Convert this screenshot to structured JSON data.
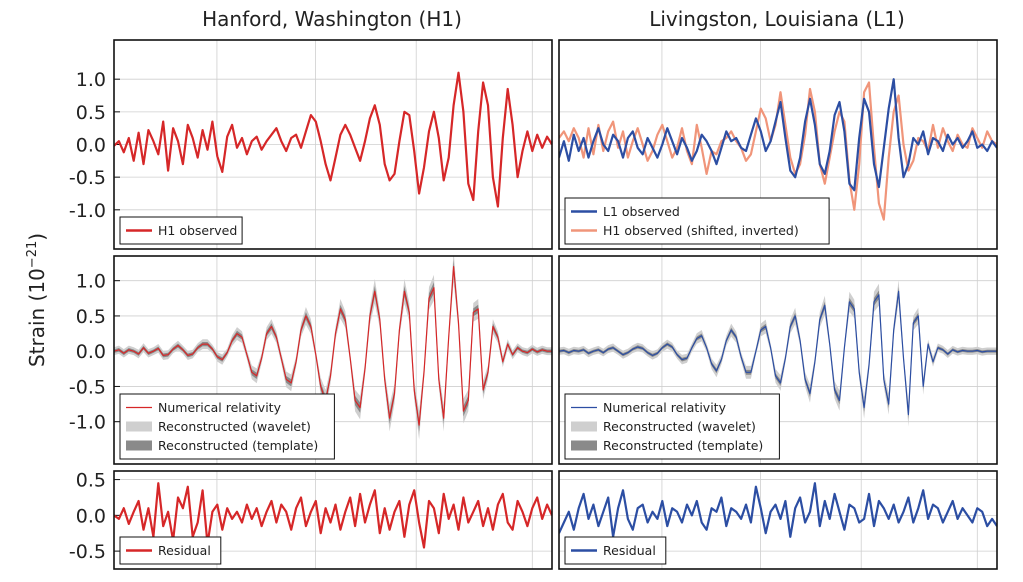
{
  "colors": {
    "h1": "#d62728",
    "l1": "#2c4ea3",
    "h1_shifted": "#f0957a",
    "wavelet_band": "#cfcfcf",
    "template_band": "#8a8a8a"
  },
  "titles": {
    "left": "Hanford, Washington (H1)",
    "right": "Livingston, Louisiana (L1)"
  },
  "ylabel": {
    "main": "Strain (10",
    "exponent": "−21",
    "close": ")"
  },
  "chart_data": [
    {
      "id": "h1-observed",
      "type": "line",
      "detector": "H1",
      "ylim": [
        -1.6,
        1.6
      ],
      "yticks": [
        1.0,
        0.5,
        0.0,
        -0.5,
        -1.0
      ],
      "ytick_labels": [
        "1.0",
        "0.5",
        "0.0",
        "-0.5",
        "-1.0"
      ],
      "grid": true,
      "legend_position": "bottom-left",
      "series": [
        {
          "name": "H1 observed",
          "color": "#d62728",
          "values": [
            -0.02,
            0.05,
            -0.12,
            0.1,
            -0.25,
            0.18,
            -0.3,
            0.22,
            0.05,
            -0.15,
            0.35,
            -0.4,
            0.25,
            0.05,
            -0.3,
            0.3,
            0.1,
            -0.2,
            0.22,
            -0.08,
            0.35,
            -0.18,
            -0.42,
            0.12,
            0.3,
            -0.05,
            0.1,
            -0.15,
            0.05,
            0.12,
            -0.08,
            0.05,
            0.15,
            0.25,
            0.05,
            -0.1,
            0.1,
            0.15,
            -0.05,
            0.2,
            0.45,
            0.35,
            0.05,
            -0.3,
            -0.55,
            -0.2,
            0.15,
            0.3,
            0.15,
            -0.05,
            -0.25,
            0.05,
            0.4,
            0.6,
            0.3,
            -0.3,
            -0.55,
            -0.45,
            0.05,
            0.5,
            0.45,
            -0.1,
            -0.75,
            -0.35,
            0.2,
            0.5,
            0.1,
            -0.55,
            -0.2,
            0.6,
            1.1,
            0.5,
            -0.6,
            -0.85,
            0.2,
            0.95,
            0.6,
            -0.5,
            -0.95,
            0.1,
            0.85,
            0.3,
            -0.5,
            -0.1,
            0.2,
            -0.1,
            0.15,
            -0.05,
            0.12,
            0.0
          ]
        }
      ]
    },
    {
      "id": "l1-observed",
      "type": "line",
      "detector": "L1",
      "ylim": [
        -1.6,
        1.6
      ],
      "grid": true,
      "legend_position": "bottom-left",
      "series": [
        {
          "name": "H1 observed (shifted, inverted)",
          "color": "#f0957a",
          "values": [
            0.1,
            0.2,
            0.05,
            0.25,
            0.1,
            -0.2,
            0.25,
            -0.15,
            0.3,
            -0.1,
            0.2,
            0.35,
            -0.05,
            0.2,
            -0.2,
            0.05,
            0.25,
            0.0,
            -0.25,
            -0.1,
            0.15,
            0.3,
            0.05,
            -0.2,
            -0.05,
            0.25,
            -0.1,
            -0.3,
            0.3,
            -0.05,
            -0.45,
            -0.1,
            -0.15,
            0.05,
            0.1,
            0.2,
            0.05,
            -0.05,
            -0.25,
            -0.15,
            0.2,
            0.55,
            0.4,
            0.05,
            0.3,
            0.8,
            0.3,
            -0.2,
            -0.45,
            -0.3,
            0.15,
            0.85,
            0.5,
            -0.3,
            -0.6,
            -0.2,
            0.2,
            0.5,
            0.35,
            -0.55,
            -1.0,
            -0.3,
            0.8,
            0.95,
            -0.05,
            -0.9,
            -1.15,
            -0.2,
            0.5,
            0.75,
            0.0,
            -0.4,
            -0.25,
            0.1,
            0.05,
            -0.1,
            0.3,
            -0.05,
            0.25,
            0.05,
            -0.1,
            0.15,
            0.0,
            -0.05,
            0.25,
            0.1,
            -0.05,
            0.2,
            0.05,
            0.0
          ]
        },
        {
          "name": "L1 observed",
          "color": "#2c4ea3",
          "values": [
            -0.2,
            0.05,
            -0.25,
            0.15,
            -0.1,
            0.1,
            -0.2,
            0.05,
            0.25,
            0.0,
            -0.1,
            0.15,
            0.05,
            -0.2,
            0.1,
            0.2,
            -0.05,
            -0.15,
            0.1,
            -0.05,
            -0.2,
            0.0,
            0.25,
            0.05,
            -0.15,
            0.1,
            -0.05,
            -0.25,
            -0.1,
            0.15,
            0.05,
            -0.1,
            -0.3,
            -0.05,
            0.2,
            0.05,
            0.1,
            -0.05,
            -0.1,
            0.15,
            0.4,
            0.2,
            -0.1,
            0.05,
            0.35,
            0.65,
            0.1,
            -0.4,
            -0.5,
            -0.2,
            0.35,
            0.7,
            0.3,
            -0.3,
            -0.45,
            -0.1,
            0.45,
            0.65,
            0.2,
            -0.6,
            -0.7,
            0.1,
            0.7,
            0.5,
            -0.3,
            -0.65,
            -0.05,
            0.55,
            1.0,
            0.1,
            -0.5,
            -0.3,
            0.1,
            0.0,
            0.2,
            -0.15,
            0.1,
            0.05,
            -0.1,
            0.15,
            0.0,
            0.1,
            -0.05,
            0.05,
            0.2,
            -0.05,
            0.0,
            -0.1,
            0.05,
            -0.05
          ]
        }
      ]
    },
    {
      "id": "h1-reconstructed",
      "type": "line",
      "detector": "H1",
      "ylim": [
        -1.6,
        1.35
      ],
      "yticks": [
        1.0,
        0.5,
        0.0,
        -0.5,
        -1.0
      ],
      "ytick_labels": [
        "1.0",
        "0.5",
        "0.0",
        "-0.5",
        "-1.0"
      ],
      "grid": true,
      "legend_position": "bottom-left",
      "bands": [
        {
          "name": "Reconstructed (wavelet)",
          "color": "#cfcfcf",
          "half_width": 0.14
        },
        {
          "name": "Reconstructed (template)",
          "color": "#8a8a8a",
          "half_width": 0.06
        }
      ],
      "series": [
        {
          "name": "Numerical relativity",
          "color": "#d62728",
          "values": [
            0.0,
            0.02,
            -0.03,
            0.02,
            0.0,
            -0.04,
            0.05,
            -0.03,
            0.0,
            0.04,
            -0.06,
            -0.05,
            0.03,
            0.08,
            0.02,
            -0.06,
            -0.04,
            0.05,
            0.1,
            0.1,
            0.03,
            -0.08,
            -0.12,
            -0.02,
            0.15,
            0.25,
            0.2,
            -0.05,
            -0.3,
            -0.35,
            -0.1,
            0.25,
            0.35,
            0.2,
            -0.1,
            -0.4,
            -0.45,
            -0.15,
            0.3,
            0.5,
            0.35,
            -0.05,
            -0.5,
            -0.7,
            -0.35,
            0.25,
            0.6,
            0.45,
            -0.1,
            -0.7,
            -0.8,
            -0.25,
            0.5,
            0.85,
            0.45,
            -0.4,
            -0.95,
            -0.6,
            0.3,
            0.85,
            0.55,
            -0.55,
            -1.05,
            -0.3,
            0.75,
            0.9,
            -0.4,
            -0.95,
            0.2,
            1.2,
            0.4,
            -0.85,
            -0.7,
            0.55,
            0.6,
            -0.55,
            -0.3,
            0.35,
            0.2,
            -0.15,
            0.1,
            -0.05,
            0.05,
            0.0,
            -0.02,
            0.03,
            -0.01,
            0.02,
            0.0,
            0.0
          ]
        }
      ]
    },
    {
      "id": "l1-reconstructed",
      "type": "line",
      "detector": "L1",
      "ylim": [
        -1.6,
        1.35
      ],
      "grid": true,
      "legend_position": "bottom-left",
      "bands": [
        {
          "name": "Reconstructed (wavelet)",
          "color": "#cfcfcf",
          "half_width": 0.13
        },
        {
          "name": "Reconstructed (template)",
          "color": "#8a8a8a",
          "half_width": 0.05
        }
      ],
      "series": [
        {
          "name": "Numerical relativity",
          "color": "#2c4ea3",
          "values": [
            0.0,
            0.01,
            -0.02,
            0.01,
            0.0,
            0.02,
            -0.03,
            0.0,
            0.02,
            -0.02,
            0.03,
            0.05,
            0.0,
            -0.05,
            -0.02,
            0.03,
            0.06,
            0.04,
            -0.02,
            -0.06,
            -0.03,
            0.05,
            0.1,
            0.06,
            -0.05,
            -0.12,
            -0.1,
            0.05,
            0.18,
            0.22,
            0.05,
            -0.18,
            -0.28,
            -0.12,
            0.15,
            0.3,
            0.2,
            -0.08,
            -0.3,
            -0.3,
            0.0,
            0.3,
            0.35,
            0.05,
            -0.35,
            -0.45,
            -0.1,
            0.35,
            0.5,
            0.15,
            -0.4,
            -0.6,
            -0.15,
            0.45,
            0.65,
            0.1,
            -0.55,
            -0.7,
            0.05,
            0.7,
            0.6,
            -0.3,
            -0.8,
            -0.2,
            0.7,
            0.8,
            -0.4,
            -0.75,
            0.3,
            0.85,
            -0.1,
            -0.9,
            0.4,
            0.5,
            -0.5,
            0.1,
            -0.15,
            0.05,
            0.02,
            -0.04,
            0.02,
            -0.01,
            0.01,
            0.0,
            0.0,
            0.01,
            -0.01,
            0.0,
            0.0,
            0.0
          ]
        }
      ]
    },
    {
      "id": "h1-residual",
      "type": "line",
      "detector": "H1",
      "ylim": [
        -0.75,
        0.62
      ],
      "yticks": [
        0.5,
        0.0,
        -0.5
      ],
      "ytick_labels": [
        "0.5",
        "0.0",
        "-0.5"
      ],
      "grid": true,
      "legend_position": "bottom-left",
      "series": [
        {
          "name": "Residual",
          "color": "#d62728",
          "values": [
            0.0,
            -0.05,
            0.1,
            -0.12,
            0.05,
            0.2,
            -0.2,
            0.1,
            -0.3,
            0.45,
            -0.15,
            0.05,
            -0.35,
            0.25,
            0.1,
            0.4,
            -0.3,
            -0.1,
            0.35,
            -0.4,
            0.05,
            0.15,
            -0.2,
            0.1,
            -0.05,
            0.05,
            -0.1,
            0.15,
            -0.05,
            0.1,
            -0.15,
            0.05,
            0.2,
            -0.1,
            0.15,
            0.05,
            -0.2,
            0.1,
            0.25,
            -0.15,
            0.05,
            0.2,
            -0.25,
            0.1,
            -0.1,
            0.15,
            -0.2,
            0.05,
            0.25,
            -0.15,
            0.3,
            -0.1,
            0.15,
            0.35,
            -0.25,
            0.1,
            -0.2,
            0.05,
            0.2,
            -0.3,
            0.15,
            0.35,
            -0.1,
            -0.45,
            0.2,
            0.1,
            -0.25,
            0.3,
            -0.05,
            0.15,
            -0.2,
            0.25,
            -0.1,
            0.05,
            0.2,
            -0.15,
            0.1,
            -0.2,
            0.15,
            0.3,
            -0.1,
            -0.2,
            0.2,
            0.05,
            -0.15,
            0.1,
            0.25,
            -0.05,
            0.15,
            0.0
          ]
        }
      ]
    },
    {
      "id": "l1-residual",
      "type": "line",
      "detector": "L1",
      "ylim": [
        -0.75,
        0.62
      ],
      "grid": true,
      "legend_position": "bottom-left",
      "series": [
        {
          "name": "Residual",
          "color": "#2c4ea3",
          "values": [
            -0.25,
            -0.1,
            0.05,
            -0.2,
            0.1,
            0.3,
            -0.05,
            0.15,
            -0.15,
            0.05,
            0.25,
            -0.3,
            0.1,
            0.35,
            -0.05,
            -0.2,
            0.1,
            0.15,
            -0.1,
            0.05,
            -0.05,
            0.2,
            -0.15,
            0.1,
            0.05,
            -0.1,
            0.15,
            0.0,
            0.2,
            -0.1,
            -0.2,
            0.1,
            0.05,
            0.25,
            -0.15,
            0.1,
            0.05,
            -0.05,
            0.15,
            -0.1,
            0.4,
            0.1,
            -0.25,
            0.05,
            0.15,
            -0.05,
            0.2,
            -0.3,
            0.1,
            0.25,
            -0.1,
            0.05,
            0.45,
            -0.15,
            0.2,
            -0.05,
            0.3,
            0.05,
            -0.2,
            0.15,
            0.1,
            -0.1,
            -0.05,
            0.3,
            -0.15,
            0.2,
            0.1,
            -0.05,
            0.15,
            -0.1,
            0.05,
            0.25,
            -0.1,
            0.1,
            0.35,
            -0.05,
            0.15,
            0.1,
            -0.1,
            0.05,
            0.2,
            -0.05,
            0.1,
            0.0,
            -0.1,
            0.1,
            0.05,
            -0.15,
            -0.05,
            -0.15
          ]
        }
      ]
    }
  ]
}
